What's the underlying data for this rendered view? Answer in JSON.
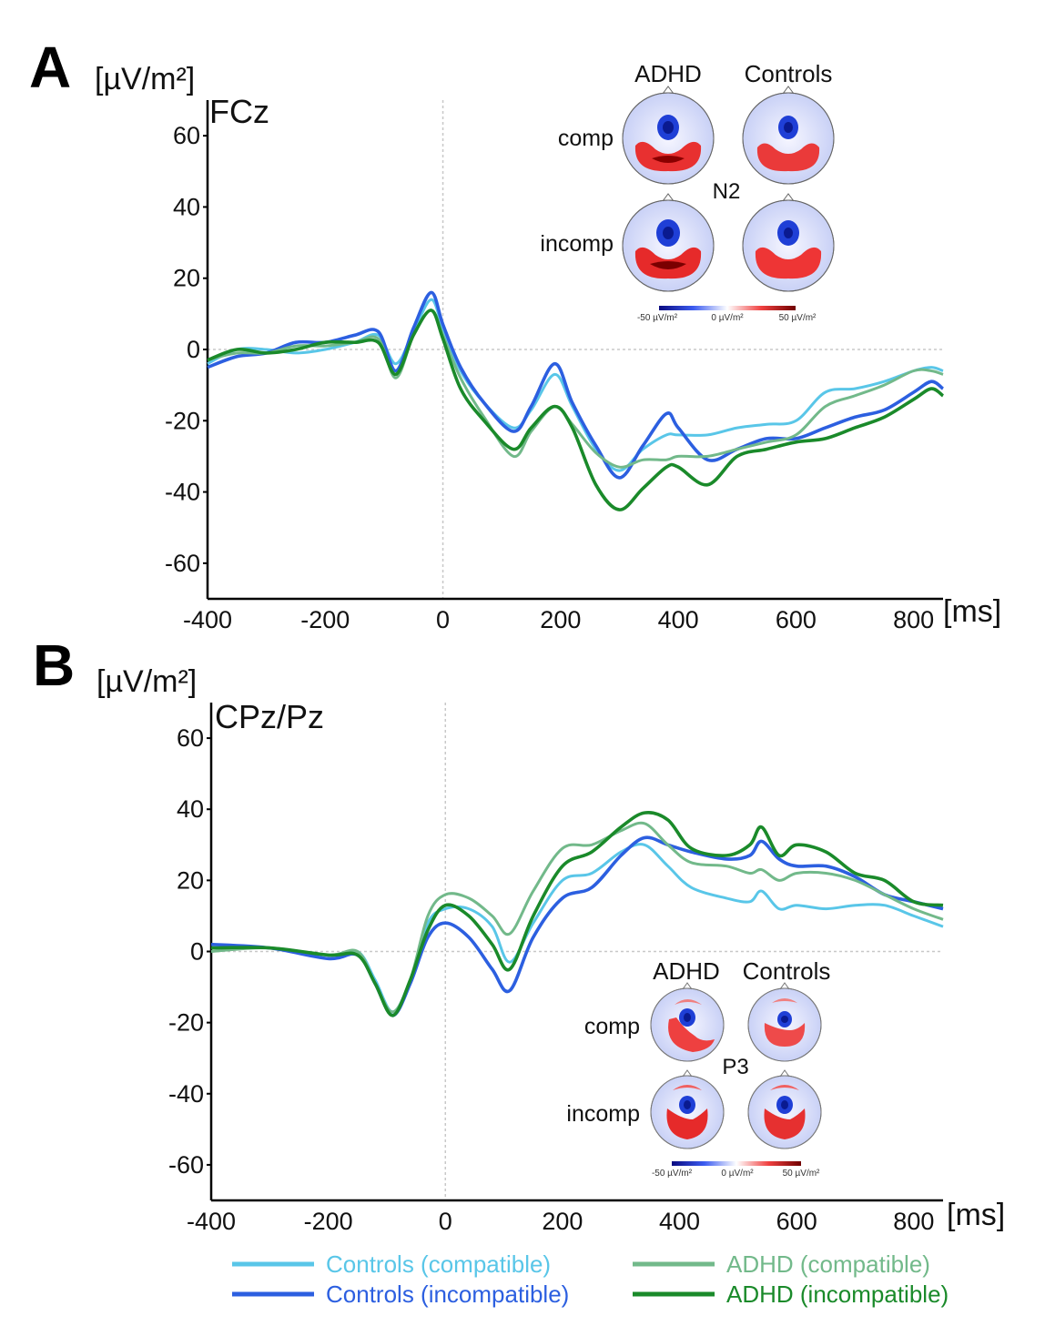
{
  "chart_data": [
    {
      "panel": "A",
      "type": "line",
      "electrode": "FCz",
      "ylabel": "[µV/m²]",
      "xunit": "[ms]",
      "xlim": [
        -400,
        850
      ],
      "ylim": [
        -70,
        70
      ],
      "xticks": [
        -400,
        -200,
        0,
        200,
        400,
        600,
        800
      ],
      "yticks": [
        60,
        40,
        20,
        0,
        -20,
        -40,
        -60
      ],
      "inset": {
        "columns": [
          "ADHD",
          "Controls"
        ],
        "rows": [
          "comp",
          "incomp"
        ],
        "component": "N2",
        "scale": [
          "-50 µV/m²",
          "0 µV/m²",
          "50 µV/m²"
        ]
      },
      "series": [
        {
          "name": "Controls (compatible)",
          "x": [
            -400,
            -350,
            -300,
            -250,
            -200,
            -150,
            -110,
            -80,
            -50,
            -20,
            0,
            30,
            70,
            120,
            150,
            190,
            220,
            260,
            300,
            340,
            380,
            400,
            450,
            500,
            550,
            600,
            650,
            700,
            750,
            800,
            830,
            850
          ],
          "y": [
            -4,
            0,
            0,
            -1,
            0,
            2,
            4,
            -4,
            5,
            14,
            6,
            -6,
            -15,
            -22,
            -17,
            -7,
            -16,
            -28,
            -34,
            -28,
            -24,
            -24,
            -24,
            -22,
            -21,
            -20,
            -12,
            -11,
            -9,
            -6,
            -5,
            -6
          ]
        },
        {
          "name": "Controls (incompatible)",
          "x": [
            -400,
            -350,
            -300,
            -250,
            -200,
            -150,
            -110,
            -80,
            -50,
            -20,
            0,
            30,
            70,
            120,
            150,
            190,
            220,
            260,
            300,
            340,
            380,
            400,
            450,
            500,
            550,
            600,
            650,
            700,
            750,
            800,
            830,
            850
          ],
          "y": [
            -5,
            -2,
            -1,
            2,
            2,
            4,
            5,
            -6,
            6,
            16,
            7,
            -5,
            -15,
            -23,
            -16,
            -4,
            -15,
            -27,
            -36,
            -27,
            -18,
            -22,
            -31,
            -28,
            -25,
            -25,
            -22,
            -19,
            -17,
            -12,
            -9,
            -11
          ]
        },
        {
          "name": "ADHD (compatible)",
          "x": [
            -400,
            -350,
            -300,
            -250,
            -200,
            -150,
            -110,
            -80,
            -50,
            -20,
            0,
            30,
            70,
            120,
            150,
            190,
            220,
            260,
            300,
            340,
            380,
            400,
            450,
            500,
            550,
            600,
            650,
            700,
            750,
            800,
            830,
            850
          ],
          "y": [
            -3,
            -1,
            -1,
            1,
            1,
            2,
            3,
            -8,
            4,
            11,
            4,
            -8,
            -19,
            -30,
            -23,
            -16,
            -21,
            -29,
            -33,
            -31,
            -31,
            -30,
            -30,
            -28,
            -26,
            -24,
            -16,
            -13,
            -10,
            -6,
            -6,
            -7
          ]
        },
        {
          "name": "ADHD (incompatible)",
          "x": [
            -400,
            -350,
            -300,
            -250,
            -200,
            -150,
            -110,
            -80,
            -50,
            -20,
            0,
            30,
            70,
            120,
            150,
            190,
            220,
            260,
            300,
            340,
            380,
            400,
            450,
            500,
            550,
            600,
            650,
            700,
            750,
            800,
            830,
            850
          ],
          "y": [
            -3,
            0,
            -1,
            0,
            2,
            2,
            2,
            -7,
            4,
            11,
            3,
            -11,
            -20,
            -28,
            -22,
            -16,
            -22,
            -38,
            -45,
            -39,
            -33,
            -33,
            -38,
            -30,
            -28,
            -26,
            -25,
            -22,
            -19,
            -14,
            -11,
            -13
          ]
        }
      ]
    },
    {
      "panel": "B",
      "type": "line",
      "electrode": "CPz/Pz",
      "ylabel": "[µV/m²]",
      "xunit": "[ms]",
      "xlim": [
        -400,
        850
      ],
      "ylim": [
        -70,
        70
      ],
      "xticks": [
        -400,
        -200,
        0,
        200,
        400,
        600,
        800
      ],
      "yticks": [
        60,
        40,
        20,
        0,
        -20,
        -40,
        -60
      ],
      "inset": {
        "columns": [
          "ADHD",
          "Controls"
        ],
        "rows": [
          "comp",
          "incomp"
        ],
        "component": "P3",
        "scale": [
          "-50 µV/m²",
          "0 µV/m²",
          "50 µV/m²"
        ]
      },
      "series": [
        {
          "name": "Controls (compatible)",
          "x": [
            -400,
            -300,
            -200,
            -150,
            -120,
            -90,
            -60,
            -30,
            0,
            40,
            80,
            110,
            150,
            200,
            250,
            300,
            340,
            380,
            420,
            480,
            520,
            540,
            570,
            600,
            650,
            700,
            750,
            800,
            850
          ],
          "y": [
            1,
            1,
            -1,
            0,
            -8,
            -17,
            -8,
            8,
            12,
            12,
            7,
            -3,
            8,
            20,
            22,
            28,
            30,
            24,
            18,
            15,
            14,
            17,
            12,
            13,
            12,
            13,
            13,
            10,
            7
          ]
        },
        {
          "name": "Controls (incompatible)",
          "x": [
            -400,
            -300,
            -200,
            -150,
            -120,
            -90,
            -60,
            -30,
            0,
            40,
            80,
            110,
            150,
            200,
            250,
            300,
            340,
            380,
            420,
            480,
            520,
            540,
            570,
            600,
            650,
            700,
            750,
            800,
            850
          ],
          "y": [
            2,
            1,
            -2,
            -1,
            -9,
            -18,
            -9,
            4,
            8,
            4,
            -5,
            -11,
            4,
            15,
            18,
            27,
            32,
            30,
            28,
            26,
            27,
            31,
            26,
            24,
            24,
            21,
            16,
            14,
            12
          ]
        },
        {
          "name": "ADHD (compatible)",
          "x": [
            -400,
            -300,
            -200,
            -150,
            -120,
            -90,
            -60,
            -30,
            0,
            40,
            80,
            110,
            150,
            200,
            250,
            300,
            340,
            380,
            420,
            480,
            520,
            540,
            570,
            600,
            650,
            700,
            750,
            800,
            850
          ],
          "y": [
            0,
            1,
            -1,
            0,
            -9,
            -17,
            -8,
            10,
            16,
            15,
            10,
            5,
            17,
            29,
            30,
            34,
            36,
            30,
            25,
            24,
            22,
            23,
            20,
            22,
            22,
            20,
            16,
            12,
            9
          ]
        },
        {
          "name": "ADHD (incompatible)",
          "x": [
            -400,
            -300,
            -200,
            -150,
            -120,
            -90,
            -60,
            -30,
            0,
            40,
            80,
            110,
            150,
            200,
            250,
            300,
            340,
            380,
            420,
            480,
            520,
            540,
            570,
            600,
            650,
            700,
            750,
            800,
            850
          ],
          "y": [
            1,
            1,
            -1,
            -1,
            -9,
            -18,
            -8,
            6,
            13,
            10,
            2,
            -5,
            10,
            24,
            28,
            35,
            39,
            37,
            29,
            27,
            30,
            35,
            27,
            30,
            28,
            22,
            20,
            14,
            13
          ]
        }
      ]
    }
  ],
  "legend": [
    {
      "label": "Controls (compatible)",
      "color": "#59c6e8"
    },
    {
      "label": "Controls (incompatible)",
      "color": "#2c5fe0"
    },
    {
      "label": "ADHD (compatible)",
      "color": "#72b98a"
    },
    {
      "label": "ADHD (incompatible)",
      "color": "#1a8a2a"
    }
  ],
  "colors": {
    "controls_compatible": "#59c6e8",
    "controls_incompatible": "#2c5fe0",
    "adhd_compatible": "#72b98a",
    "adhd_incompatible": "#1a8a2a",
    "topo_negative": "#1f3fd6",
    "topo_positive": "#e21d1d"
  }
}
